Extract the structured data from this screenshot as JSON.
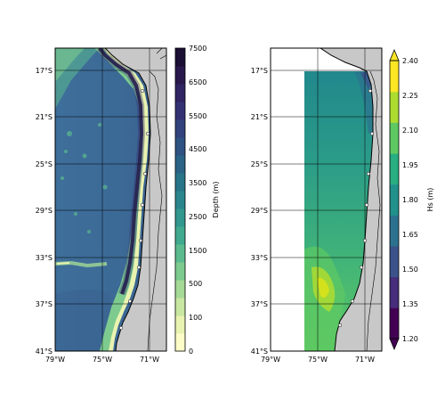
{
  "left_panel": {
    "lat_ticks": [
      "17°S",
      "21°S",
      "25°S",
      "29°S",
      "33°S",
      "37°S",
      "41°S"
    ],
    "lon_ticks": [
      "79°W",
      "75°W",
      "71°W"
    ]
  },
  "right_panel": {
    "lat_ticks": [
      "17°S",
      "21°S",
      "25°S",
      "29°S",
      "33°S",
      "37°S",
      "41°S"
    ],
    "lon_ticks": [
      "79°W",
      "75°W",
      "71°W"
    ]
  },
  "depth_colorbar": {
    "label": "Depth (m)",
    "ticks": [
      "0",
      "100",
      "500",
      "1500",
      "2500",
      "3500",
      "4500",
      "5500",
      "6500",
      "7500"
    ],
    "colors": [
      "#fdfdc8",
      "#e9f3b0",
      "#c8e7a0",
      "#a4da95",
      "#7dcb8f",
      "#5bbb8f",
      "#40a98f",
      "#32978e",
      "#2b858c",
      "#287489",
      "#2a6386",
      "#2e5282",
      "#32427c",
      "#343173",
      "#312462",
      "#28184c",
      "#1b0f34"
    ]
  },
  "hs_colorbar": {
    "label": "Hs (m)",
    "ticks": [
      "1.20",
      "1.35",
      "1.50",
      "1.65",
      "1.80",
      "1.95",
      "2.10",
      "2.25",
      "2.40"
    ],
    "colors": [
      "#440154",
      "#472d7b",
      "#3b528b",
      "#2c728e",
      "#21918c",
      "#28ae80",
      "#5ec962",
      "#addc30",
      "#fde725"
    ]
  },
  "colors": {
    "land": "#c8c8c8",
    "coast": "#000000",
    "grid": "#000000",
    "trench": "#2a1f4e"
  }
}
